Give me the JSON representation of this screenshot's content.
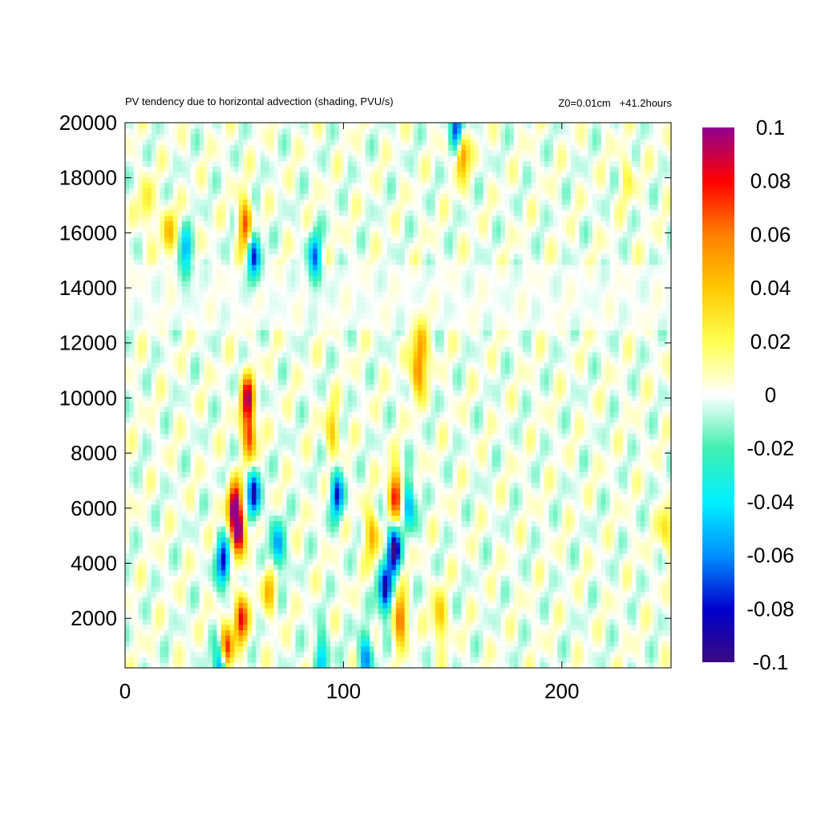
{
  "chart_data": {
    "type": "heatmap",
    "title": "PV tendency due to horizontal advection (shading, PVU/s)",
    "subtitle": "Z0=0.01cm   +41.2hours",
    "xlabel": "",
    "ylabel": "",
    "xlim": [
      0,
      250
    ],
    "ylim": [
      200,
      20000
    ],
    "x_ticks": [
      0,
      100,
      200
    ],
    "y_ticks": [
      2000,
      4000,
      6000,
      8000,
      10000,
      12000,
      14000,
      16000,
      18000,
      20000
    ],
    "colorbar": {
      "range": [
        -0.1,
        0.1
      ],
      "ticks": [
        "0.1",
        "0.08",
        "0.06",
        "0.04",
        "0.02",
        "0",
        "-0.02",
        "-0.04",
        "-0.06",
        "-0.08",
        "-0.1"
      ],
      "tick_values": [
        0.1,
        0.08,
        0.06,
        0.04,
        0.02,
        0,
        -0.02,
        -0.04,
        -0.06,
        -0.08,
        -0.1
      ],
      "palette": [
        {
          "v": -0.1,
          "color": "#3a0a82"
        },
        {
          "v": -0.08,
          "color": "#0000cc"
        },
        {
          "v": -0.06,
          "color": "#0090ff"
        },
        {
          "v": -0.04,
          "color": "#00f0ff"
        },
        {
          "v": -0.02,
          "color": "#40f0b0"
        },
        {
          "v": 0.0,
          "color": "#ffffff"
        },
        {
          "v": 0.02,
          "color": "#ffff50"
        },
        {
          "v": 0.04,
          "color": "#ffc800"
        },
        {
          "v": 0.06,
          "color": "#ff8000"
        },
        {
          "v": 0.08,
          "color": "#ff0000"
        },
        {
          "v": 0.1,
          "color": "#900090"
        }
      ]
    },
    "features": [
      {
        "x": 56,
        "y": 10000,
        "value": 0.085
      },
      {
        "x": 57,
        "y": 8600,
        "value": 0.07
      },
      {
        "x": 52,
        "y": 5200,
        "value": 0.1
      },
      {
        "x": 50,
        "y": 6100,
        "value": 0.09
      },
      {
        "x": 53,
        "y": 2000,
        "value": 0.08
      },
      {
        "x": 46,
        "y": 800,
        "value": 0.1
      },
      {
        "x": 44,
        "y": 300,
        "value": -0.1
      },
      {
        "x": 45,
        "y": 4000,
        "value": -0.08
      },
      {
        "x": 59,
        "y": 6500,
        "value": -0.08
      },
      {
        "x": 124,
        "y": 6500,
        "value": 0.085
      },
      {
        "x": 123,
        "y": 4500,
        "value": -0.1
      },
      {
        "x": 119,
        "y": 3000,
        "value": -0.09
      },
      {
        "x": 126,
        "y": 2000,
        "value": 0.07
      },
      {
        "x": 134,
        "y": 11000,
        "value": 0.06
      },
      {
        "x": 136,
        "y": 12000,
        "value": 0.04
      },
      {
        "x": 113,
        "y": 5000,
        "value": 0.05
      },
      {
        "x": 144,
        "y": 2000,
        "value": 0.045
      },
      {
        "x": 95,
        "y": 8800,
        "value": 0.04
      },
      {
        "x": 97,
        "y": 6500,
        "value": -0.07
      },
      {
        "x": 130,
        "y": 6200,
        "value": -0.06
      },
      {
        "x": 55,
        "y": 16300,
        "value": 0.07
      },
      {
        "x": 59,
        "y": 15200,
        "value": -0.07
      },
      {
        "x": 28,
        "y": 15200,
        "value": -0.05
      },
      {
        "x": 87,
        "y": 15100,
        "value": -0.06
      },
      {
        "x": 152,
        "y": 19800,
        "value": -0.1
      },
      {
        "x": 154,
        "y": 19000,
        "value": 0.08
      },
      {
        "x": 20,
        "y": 16000,
        "value": 0.04
      },
      {
        "x": 66,
        "y": 3000,
        "value": 0.04
      },
      {
        "x": 70,
        "y": 4600,
        "value": -0.06
      },
      {
        "x": 248,
        "y": 5200,
        "value": 0.035
      },
      {
        "x": 10,
        "y": 17000,
        "value": 0.03
      },
      {
        "x": 230,
        "y": 18000,
        "value": 0.02
      },
      {
        "x": 90,
        "y": 600,
        "value": -0.05
      },
      {
        "x": 110,
        "y": 600,
        "value": -0.06
      }
    ]
  }
}
